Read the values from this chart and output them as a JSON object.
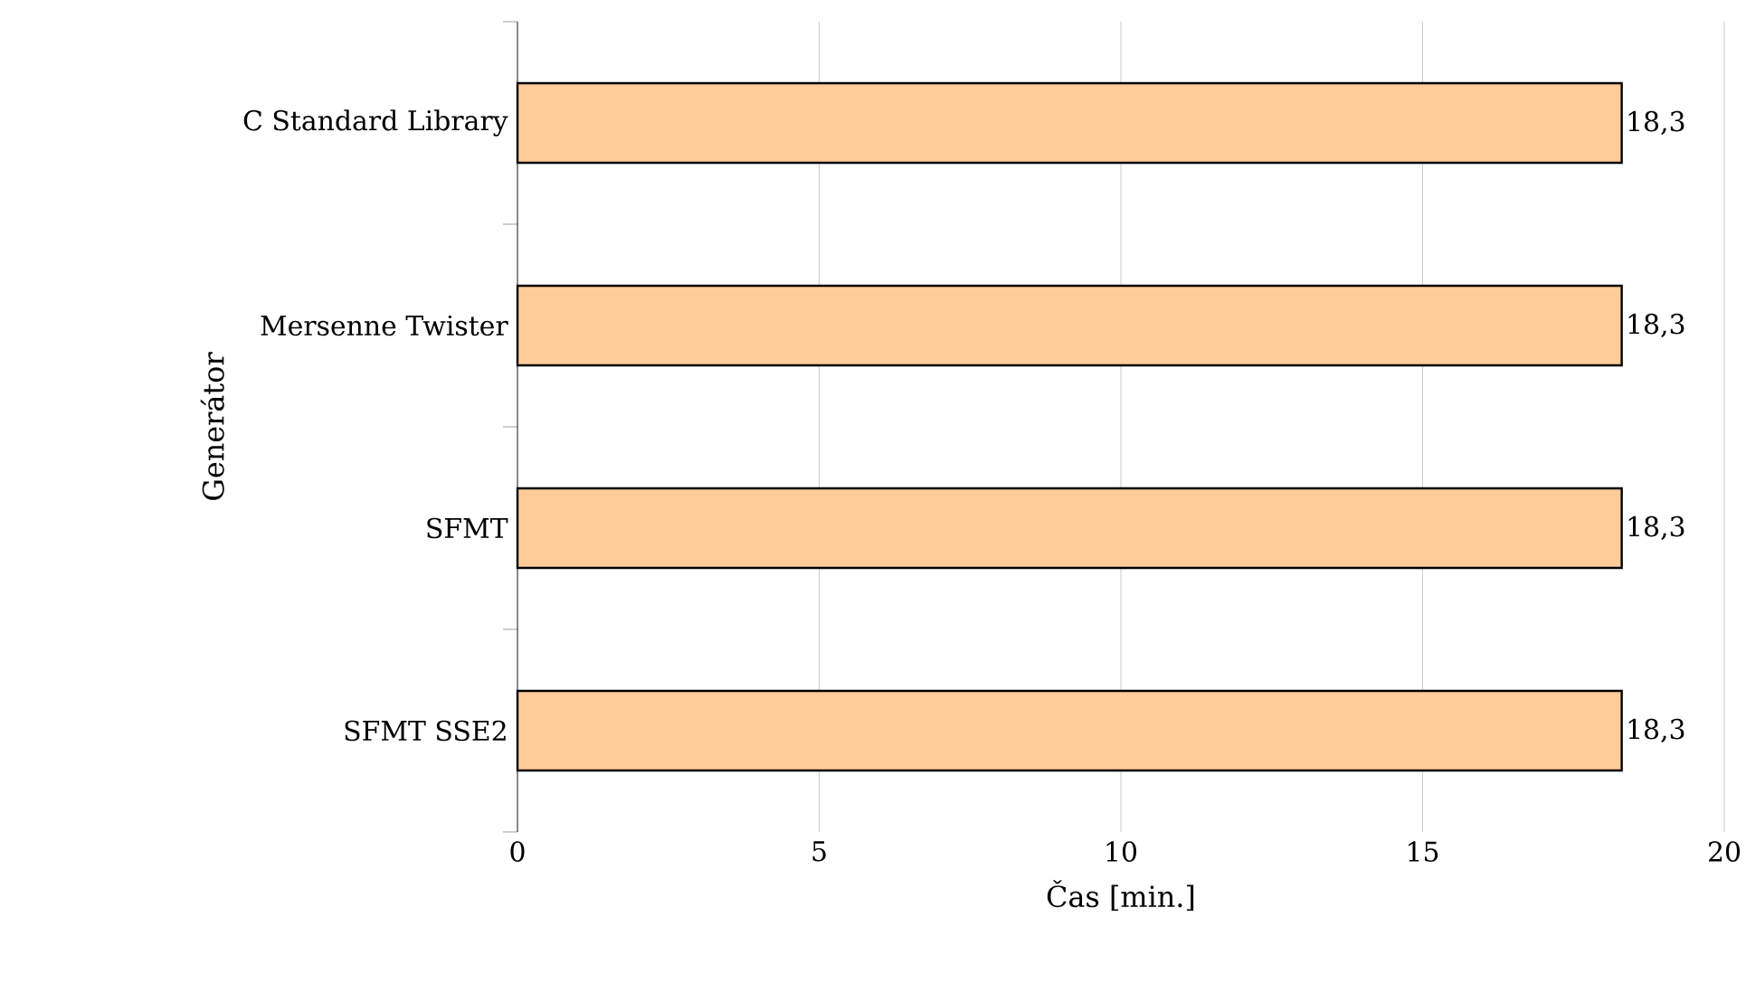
{
  "chart_data": {
    "type": "bar",
    "orientation": "horizontal",
    "xlabel": "Čas [min.]",
    "ylabel": "Generátor",
    "categories": [
      "C Standard Library",
      "Mersenne Twister",
      "SFMT",
      "SFMT SSE2"
    ],
    "values": [
      18.3,
      18.3,
      18.3,
      18.3
    ],
    "value_labels": [
      "18,3",
      "18,3",
      "18,3",
      "18,3"
    ],
    "color": "#ffcc99",
    "xlim": [
      0,
      20
    ],
    "xticks": [
      0,
      5,
      10,
      15,
      20
    ],
    "grid": "x"
  }
}
